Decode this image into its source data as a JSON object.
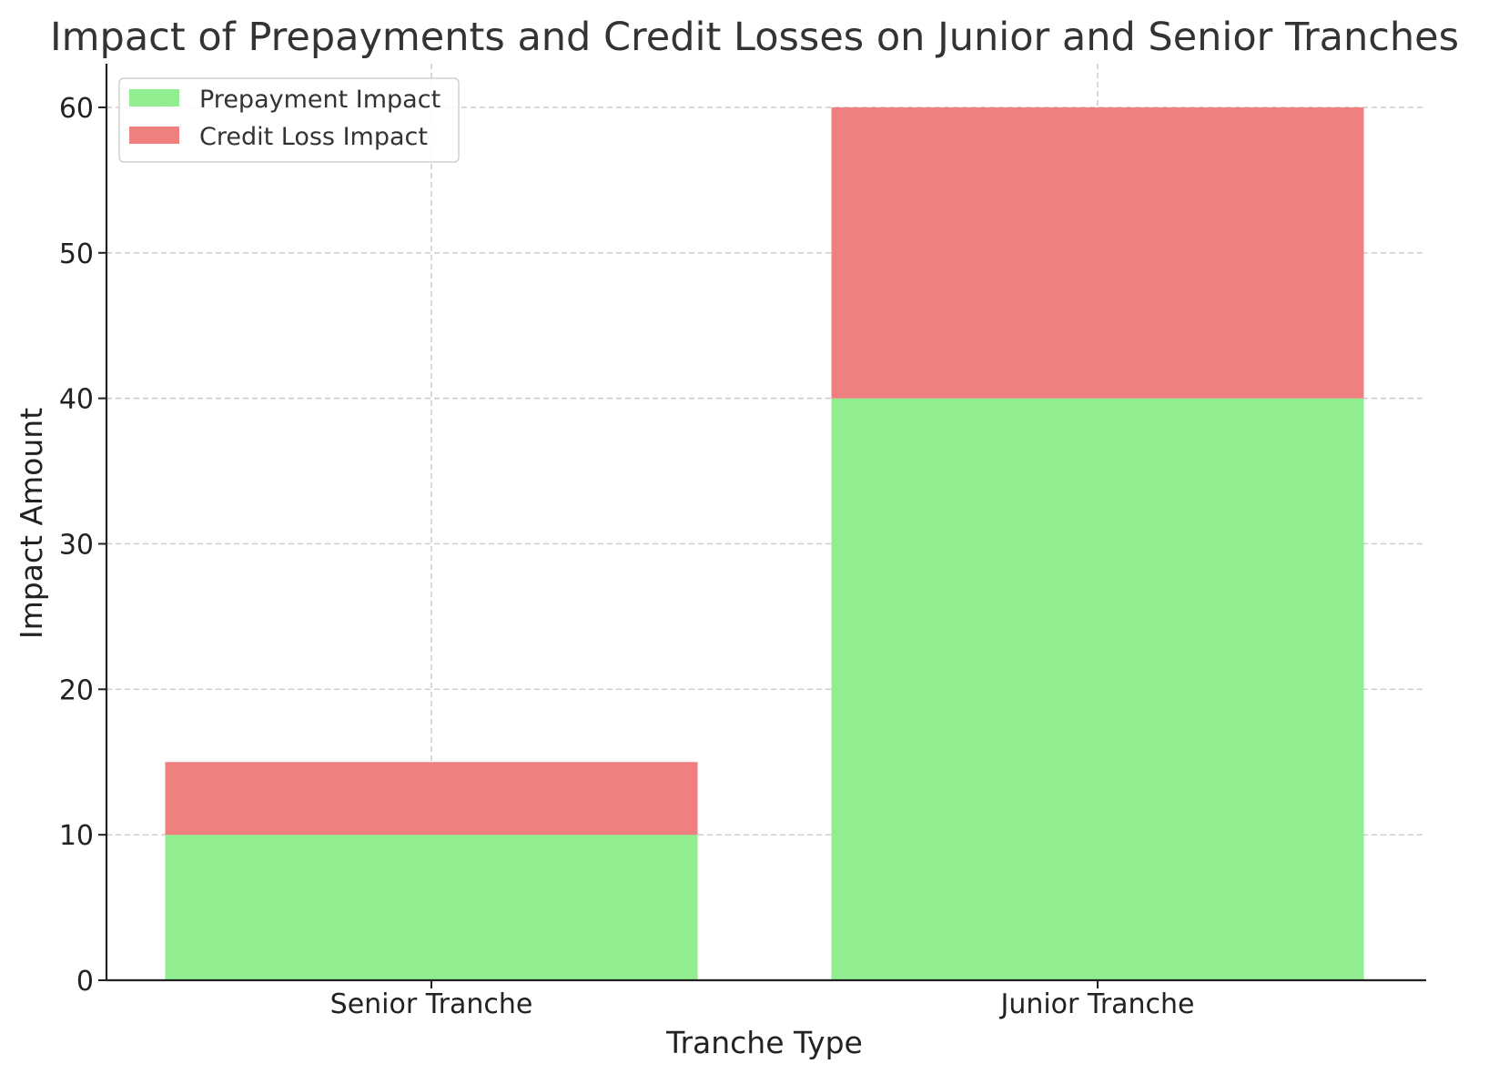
{
  "chart_data": {
    "type": "bar",
    "stacked": true,
    "title": "Impact of Prepayments and Credit Losses on Junior and Senior Tranches",
    "xlabel": "Tranche Type",
    "ylabel": "Impact Amount",
    "categories": [
      "Senior Tranche",
      "Junior Tranche"
    ],
    "series": [
      {
        "name": "Prepayment Impact",
        "values": [
          10,
          40
        ],
        "color": "#90ee90"
      },
      {
        "name": "Credit Loss Impact",
        "values": [
          5,
          20
        ],
        "color": "#f08080"
      }
    ],
    "ylim": [
      0,
      63
    ],
    "yticks": [
      0,
      10,
      20,
      30,
      40,
      50,
      60
    ],
    "grid": true,
    "legend_position": "top-left"
  }
}
